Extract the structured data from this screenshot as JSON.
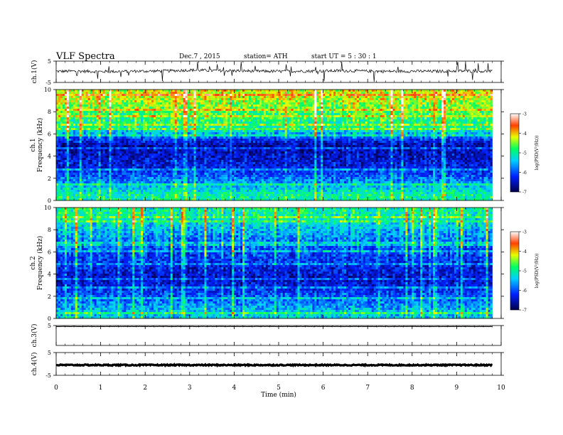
{
  "header": {
    "title": "VLF  Spectra",
    "date": "Dec.7  , 2015",
    "station": "station= ATH",
    "start": "start  UT  =   5  : 30 : 1"
  },
  "chart_data": [
    {
      "type": "line",
      "panel": "ch1-waveform",
      "ylabel": "ch.1(V)",
      "ylim": [
        -5,
        5
      ],
      "y_ticks": [
        "5",
        "-5"
      ],
      "xlim": [
        0,
        10
      ],
      "x": [
        0,
        0.5,
        1,
        1.5,
        2,
        2.5,
        3,
        3.5,
        4,
        4.5,
        5,
        5.5,
        6,
        6.5,
        7,
        7.5,
        8,
        8.5,
        9,
        9.5,
        9.8
      ],
      "y": [
        0.2,
        0.3,
        0.1,
        0.2,
        0.3,
        0.4,
        0.8,
        0.6,
        0.5,
        0.3,
        0.2,
        0.3,
        0.4,
        0.5,
        0.3,
        0.2,
        0.3,
        0.2,
        0.4,
        0.3,
        0.2
      ]
    },
    {
      "type": "heatmap",
      "panel": "ch1-spectrogram",
      "ylabel": "ch.1\nFrequency (kHz)",
      "ylabel_lines": [
        "ch.1",
        "Frequency  (kHz)"
      ],
      "ylim": [
        0,
        10
      ],
      "y_ticks": [
        "0",
        "2",
        "4",
        "6",
        "8",
        "10"
      ],
      "xlim": [
        0,
        10
      ],
      "colorbar": {
        "label": "log(PSD(V²/Hz))",
        "range": [
          -7,
          -3
        ],
        "ticks": [
          "-3",
          "-4",
          "-5",
          "-6",
          "-7"
        ]
      },
      "level_profile": [
        {
          "f_khz": 0.5,
          "log_psd": -5.0
        },
        {
          "f_khz": 1.5,
          "log_psd": -5.6
        },
        {
          "f_khz": 3.0,
          "log_psd": -6.3
        },
        {
          "f_khz": 5.0,
          "log_psd": -6.6
        },
        {
          "f_khz": 6.5,
          "log_psd": -5.0
        },
        {
          "f_khz": 8.0,
          "log_psd": -4.6
        },
        {
          "f_khz": 9.5,
          "log_psd": -4.2
        }
      ]
    },
    {
      "type": "heatmap",
      "panel": "ch2-spectrogram",
      "ylabel": "ch.2\nFrequency (kHz)",
      "ylabel_lines": [
        "ch.2",
        "Frequency  (kHz)"
      ],
      "ylim": [
        0,
        10
      ],
      "y_ticks": [
        "0",
        "2",
        "4",
        "6",
        "8",
        "10"
      ],
      "xlim": [
        0,
        10
      ],
      "colorbar": {
        "label": "log(PSD(V²/Hz))",
        "range": [
          -7,
          -3
        ],
        "ticks": [
          "-3",
          "-4",
          "-5",
          "-6",
          "-7"
        ]
      },
      "level_profile": [
        {
          "f_khz": 0.5,
          "log_psd": -5.4
        },
        {
          "f_khz": 1.5,
          "log_psd": -5.8
        },
        {
          "f_khz": 3.5,
          "log_psd": -6.5
        },
        {
          "f_khz": 5.0,
          "log_psd": -6.2
        },
        {
          "f_khz": 7.0,
          "log_psd": -5.8
        },
        {
          "f_khz": 8.5,
          "log_psd": -5.3
        },
        {
          "f_khz": 9.5,
          "log_psd": -5.0
        }
      ]
    },
    {
      "type": "line",
      "panel": "ch3-waveform",
      "ylabel": "ch.3(V)",
      "ylim": [
        -5,
        5
      ],
      "y_ticks": [
        "5"
      ],
      "xlim": [
        0,
        10
      ],
      "x": [
        0,
        9.8
      ],
      "y": [
        4.5,
        4.5
      ]
    },
    {
      "type": "line",
      "panel": "ch4-waveform",
      "ylabel": "ch.4(V)",
      "ylim": [
        -5,
        5
      ],
      "y_ticks": [
        "5",
        "-5"
      ],
      "xlim": [
        0,
        10
      ],
      "x": [
        0,
        9.8
      ],
      "y": [
        -0.5,
        -0.5
      ],
      "xlabel": "Time  (min)",
      "x_ticks": [
        "0",
        "1",
        "2",
        "3",
        "4",
        "5",
        "6",
        "7",
        "8",
        "9",
        "10"
      ]
    }
  ]
}
